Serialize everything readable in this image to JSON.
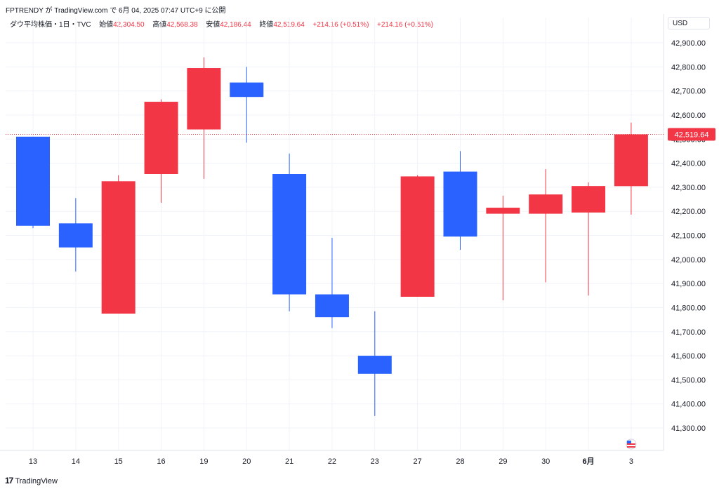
{
  "header": {
    "published_by": "FPTRENDY が TradingView.com で 6月 04, 2025 07:47 UTC+9 に公開"
  },
  "legend": {
    "symbol": "ダウ平均株価・1日・TVC",
    "open_label": "始値",
    "open_value": "42,304.50",
    "high_label": "高値",
    "high_value": "42,568.38",
    "low_label": "安値",
    "low_value": "42,186.44",
    "close_label": "終値",
    "close_value": "42,519.64",
    "change": "+214.16 (+0.51%)",
    "change2": "+214.16 (+0.51%)"
  },
  "currency": "USD",
  "footer": {
    "brand": "TradingView",
    "logo": "17"
  },
  "colors": {
    "up": "#F23645",
    "down": "#2962FF",
    "grid": "#f0f3fa",
    "axis_text": "#131722"
  },
  "chart_data": {
    "type": "candlestick",
    "ylim": [
      41200,
      43000
    ],
    "y_ticks": [
      {
        "v": 42900,
        "label": "42,900.00"
      },
      {
        "v": 42800,
        "label": "42,800.00"
      },
      {
        "v": 42700,
        "label": "42,700.00"
      },
      {
        "v": 42600,
        "label": "42,600.00"
      },
      {
        "v": 42500,
        "label": "42,500.00"
      },
      {
        "v": 42400,
        "label": "42,400.00"
      },
      {
        "v": 42300,
        "label": "42,300.00"
      },
      {
        "v": 42200,
        "label": "42,200.00"
      },
      {
        "v": 42100,
        "label": "42,100.00"
      },
      {
        "v": 42000,
        "label": "42,000.00"
      },
      {
        "v": 41900,
        "label": "41,900.00"
      },
      {
        "v": 41800,
        "label": "41,800.00"
      },
      {
        "v": 41700,
        "label": "41,700.00"
      },
      {
        "v": 41600,
        "label": "41,600.00"
      },
      {
        "v": 41500,
        "label": "41,500.00"
      },
      {
        "v": 41400,
        "label": "41,400.00"
      },
      {
        "v": 41300,
        "label": "41,300.00"
      }
    ],
    "current_price": 42519.64,
    "current_price_label": "42,519.64",
    "x_labels": [
      "13",
      "14",
      "15",
      "16",
      "19",
      "20",
      "21",
      "22",
      "23",
      "27",
      "28",
      "29",
      "30",
      "6月",
      "3"
    ],
    "bold_label_index": 13,
    "candles": [
      {
        "label": "13",
        "open": 42510,
        "high": 42510,
        "low": 42130,
        "close": 42140,
        "color": "down"
      },
      {
        "label": "14",
        "open": 42150,
        "high": 42255,
        "low": 41950,
        "close": 42050,
        "color": "down"
      },
      {
        "label": "15",
        "open": 41775,
        "high": 42350,
        "low": 41775,
        "close": 42325,
        "color": "up"
      },
      {
        "label": "16",
        "open": 42355,
        "high": 42665,
        "low": 42235,
        "close": 42655,
        "color": "up"
      },
      {
        "label": "19",
        "open": 42540,
        "high": 42840,
        "low": 42335,
        "close": 42795,
        "color": "up"
      },
      {
        "label": "20",
        "open": 42735,
        "high": 42800,
        "low": 42485,
        "close": 42675,
        "color": "down"
      },
      {
        "label": "21",
        "open": 42355,
        "high": 42440,
        "low": 41785,
        "close": 41855,
        "color": "down"
      },
      {
        "label": "22",
        "open": 41855,
        "high": 42090,
        "low": 41715,
        "close": 41760,
        "color": "down"
      },
      {
        "label": "23",
        "open": 41600,
        "high": 41785,
        "low": 41350,
        "close": 41525,
        "color": "down"
      },
      {
        "label": "27",
        "open": 41845,
        "high": 42350,
        "low": 41845,
        "close": 42345,
        "color": "up"
      },
      {
        "label": "28",
        "open": 42365,
        "high": 42450,
        "low": 42040,
        "close": 42095,
        "color": "down"
      },
      {
        "label": "29",
        "open": 42190,
        "high": 42265,
        "low": 41830,
        "close": 42215,
        "color": "up"
      },
      {
        "label": "30",
        "open": 42190,
        "high": 42375,
        "low": 41905,
        "close": 42270,
        "color": "up"
      },
      {
        "label": "6月",
        "open": 42195,
        "high": 42320,
        "low": 41850,
        "close": 42305,
        "color": "up"
      },
      {
        "label": "3",
        "open": 42304.5,
        "high": 42568.38,
        "low": 42186.44,
        "close": 42519.64,
        "color": "up"
      }
    ]
  }
}
